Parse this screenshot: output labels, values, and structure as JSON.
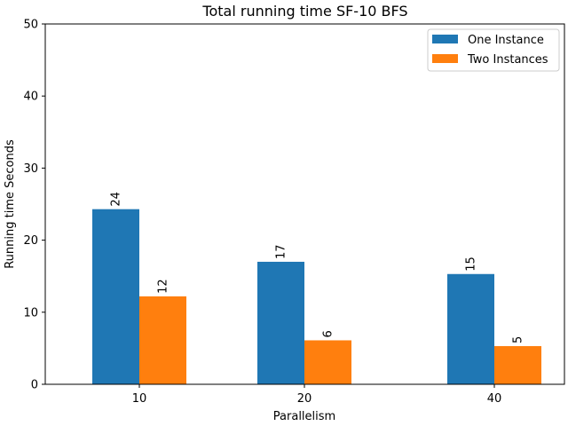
{
  "chart_data": {
    "type": "bar",
    "title": "Total running time SF-10 BFS",
    "xlabel": "Parallelism",
    "ylabel": "Running time Seconds",
    "categories": [
      "10",
      "20",
      "40"
    ],
    "ylim": [
      0,
      50
    ],
    "yticks": [
      0,
      10,
      20,
      30,
      40,
      50
    ],
    "grid": false,
    "legend_position": "top-right",
    "series": [
      {
        "name": "One Instance",
        "color": "#1f77b4",
        "values": [
          24.3,
          17.0,
          15.3
        ],
        "labels": [
          "24",
          "17",
          "15"
        ]
      },
      {
        "name": "Two Instances",
        "color": "#ff7f0e",
        "values": [
          12.2,
          6.1,
          5.3
        ],
        "labels": [
          "12",
          "6",
          "5"
        ]
      }
    ]
  }
}
